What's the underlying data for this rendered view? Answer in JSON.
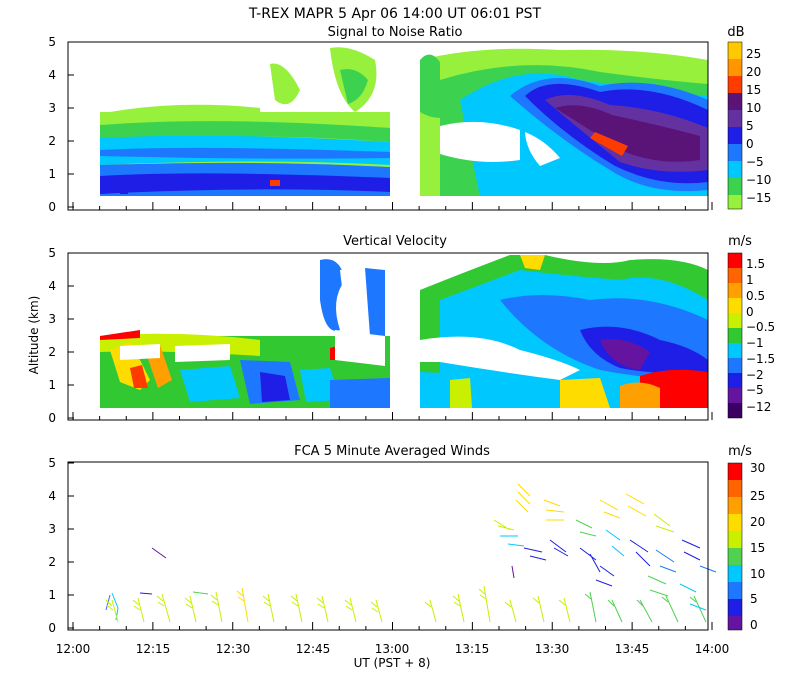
{
  "page_title": "T-REX  MAPR  5 Apr 06  14:00 UT  06:01  PST",
  "chart_data": [
    {
      "type": "heatmap",
      "title": "Signal to Noise Ratio",
      "ylabel": "",
      "ylim": [
        0,
        5
      ],
      "y_ticks": [
        "0",
        "1",
        "2",
        "3",
        "4",
        "5"
      ],
      "colorbar": {
        "unit": "dB",
        "labels": [
          "25",
          "20",
          "15",
          "10",
          "5",
          "0",
          "−5",
          "−10",
          "−15"
        ],
        "colors": [
          "#ffc800",
          "#ff9600",
          "#ff3c00",
          "#5a1478",
          "#6432a0",
          "#1e1ee6",
          "#1e78ff",
          "#00c8ff",
          "#3cd250",
          "#96f03c"
        ]
      }
    },
    {
      "type": "heatmap",
      "title": "Vertical Velocity",
      "ylabel": "Altitude (km)",
      "ylim": [
        0,
        5
      ],
      "y_ticks": [
        "0",
        "1",
        "2",
        "3",
        "4",
        "5"
      ],
      "colorbar": {
        "unit": "m/s",
        "labels": [
          "1.5",
          "1",
          "0.5",
          "0",
          "−0.5",
          "−1",
          "−1.5",
          "−2",
          "−5",
          "−12"
        ],
        "colors": [
          "#ff0000",
          "#ff6400",
          "#ffa000",
          "#ffdc00",
          "#c8f000",
          "#32c832",
          "#00c8ff",
          "#1e78ff",
          "#1e1ee6",
          "#6414a0",
          "#3c0064"
        ]
      }
    },
    {
      "type": "scatter",
      "title": "FCA 5 Minute Averaged Winds",
      "xlabel": "UT  (PST + 8)",
      "ylabel": "",
      "ylim": [
        0,
        5
      ],
      "y_ticks": [
        "0",
        "1",
        "2",
        "3",
        "4",
        "5"
      ],
      "x_ticks": [
        "12:00",
        "12:15",
        "12:30",
        "12:45",
        "13:00",
        "13:15",
        "13:30",
        "13:45",
        "14:00"
      ],
      "colorbar": {
        "unit": "m/s",
        "labels": [
          "30",
          "25",
          "20",
          "15",
          "10",
          "5",
          "0"
        ],
        "colors": [
          "#ff0000",
          "#ff6400",
          "#ffa000",
          "#ffdc00",
          "#c8f000",
          "#50d250",
          "#00c8ff",
          "#1e78ff",
          "#1e1ee6",
          "#6414a0"
        ]
      }
    }
  ]
}
